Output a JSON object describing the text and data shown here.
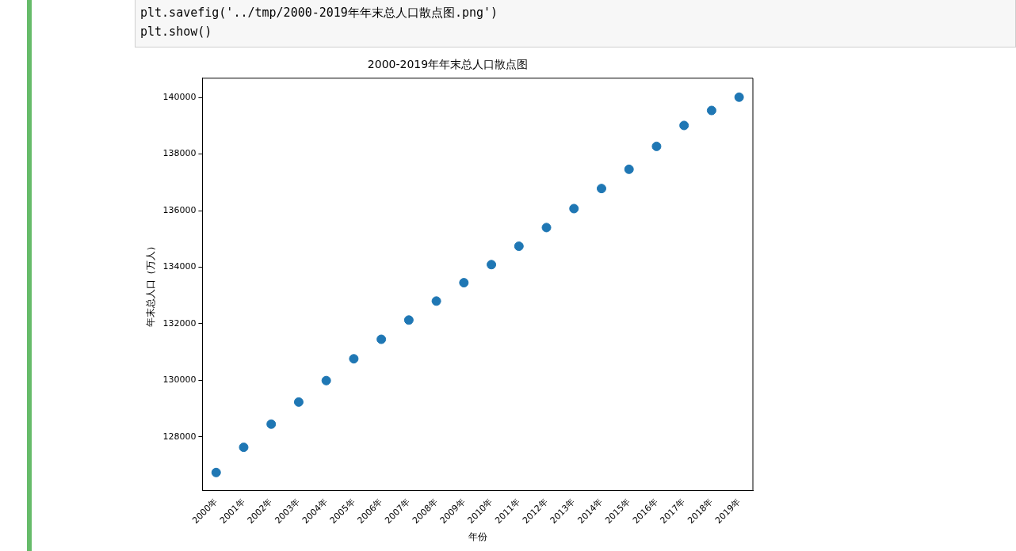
{
  "chart_data": {
    "type": "scatter",
    "title": "2000-2019年年末总人口散点图",
    "xlabel": "年份",
    "ylabel": "年末总人口（万人）",
    "categories": [
      "2000年",
      "2001年",
      "2002年",
      "2003年",
      "2004年",
      "2005年",
      "2006年",
      "2007年",
      "2008年",
      "2009年",
      "2010年",
      "2011年",
      "2012年",
      "2013年",
      "2014年",
      "2015年",
      "2016年",
      "2017年",
      "2018年",
      "2019年"
    ],
    "values": [
      126740,
      127630,
      128450,
      129230,
      129990,
      130760,
      131450,
      132130,
      132800,
      133450,
      134090,
      134740,
      135400,
      136070,
      136780,
      137460,
      138270,
      139010,
      139540,
      140010
    ],
    "color": "#1f77b4",
    "marker": "circle",
    "grid": false,
    "legend": false,
    "ylim": [
      126100,
      140680
    ],
    "yticks": [
      128000,
      130000,
      132000,
      134000,
      136000,
      138000,
      140000
    ],
    "annotations": [
      "plt.savefig('../tmp/2000-2019年年末总人口散点图.png')",
      "plt.show()"
    ]
  }
}
